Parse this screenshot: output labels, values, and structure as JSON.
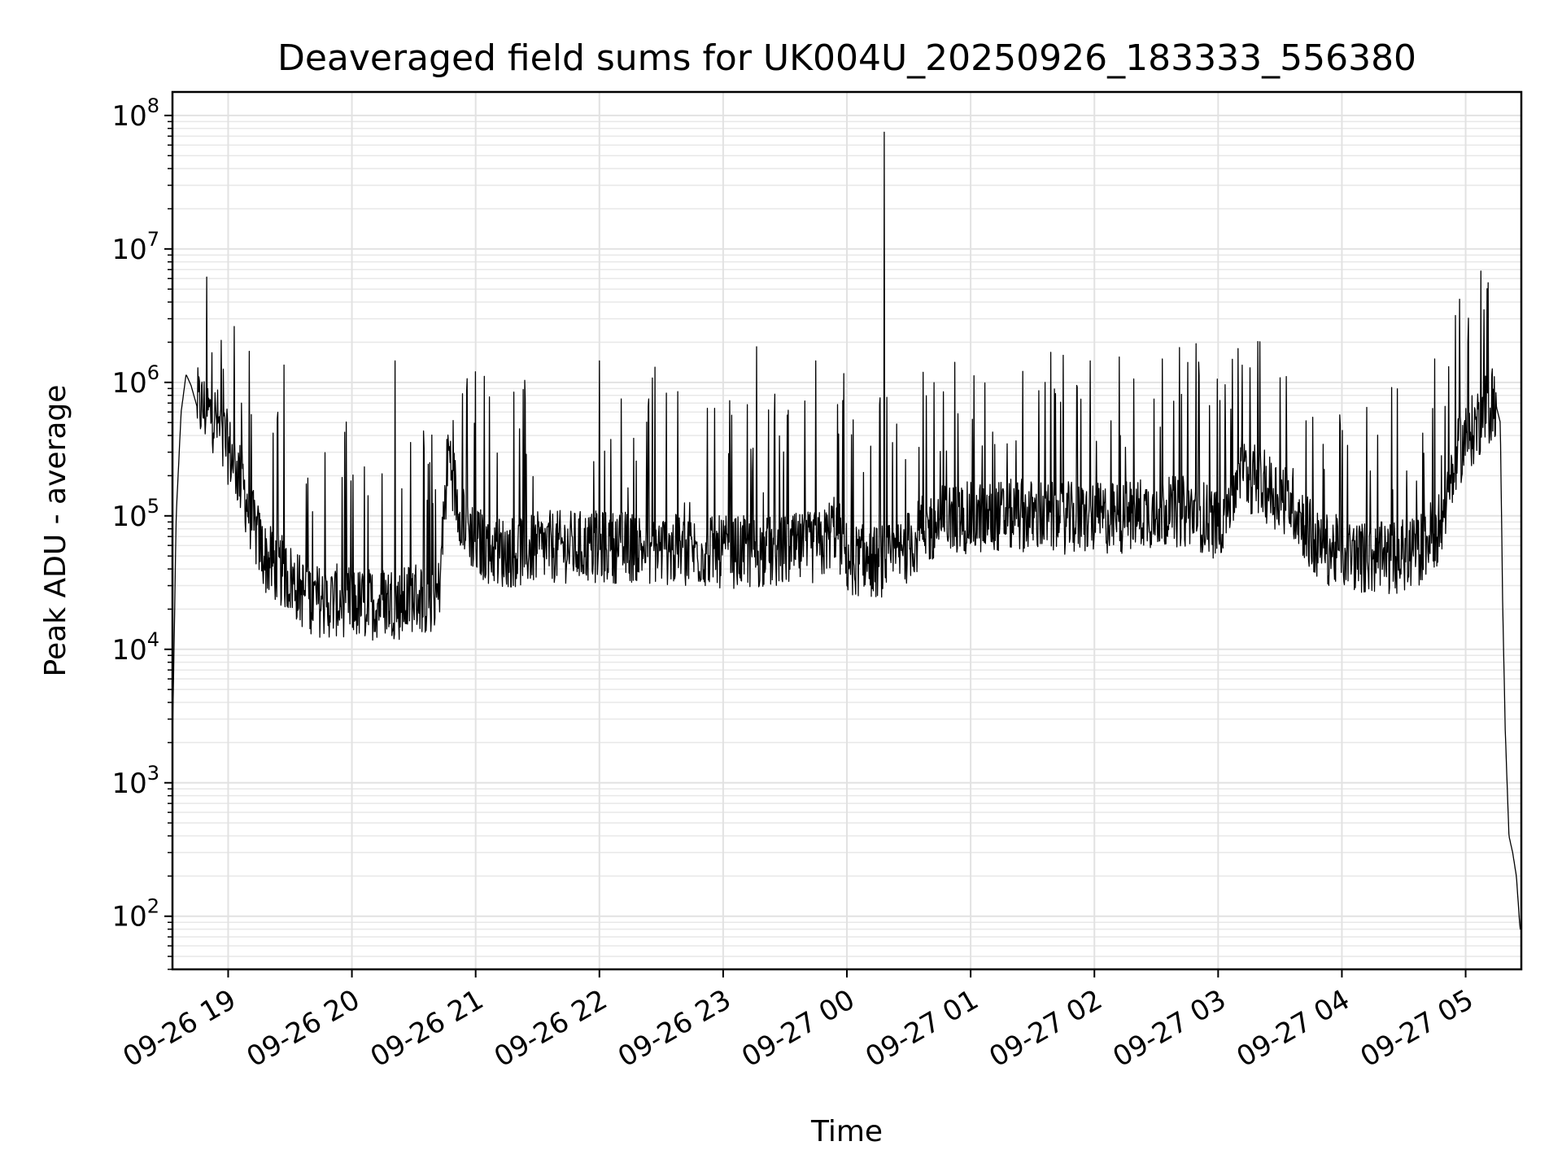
{
  "chart_data": {
    "type": "line",
    "title": "Deaveraged field sums for UK004U_20250926_183333_556380",
    "xlabel": "Time",
    "ylabel": "Peak ADU - average",
    "yscale": "log",
    "ylim": [
      40,
      150000000
    ],
    "xlim_hours": [
      -0.45,
      10.45
    ],
    "grid": true,
    "line_color": "#000000",
    "x_ticks": [
      {
        "hour": 0,
        "label": "09-26 19"
      },
      {
        "hour": 1,
        "label": "09-26 20"
      },
      {
        "hour": 2,
        "label": "09-26 21"
      },
      {
        "hour": 3,
        "label": "09-26 22"
      },
      {
        "hour": 4,
        "label": "09-26 23"
      },
      {
        "hour": 5,
        "label": "09-27 00"
      },
      {
        "hour": 6,
        "label": "09-27 01"
      },
      {
        "hour": 7,
        "label": "09-27 02"
      },
      {
        "hour": 8,
        "label": "09-27 03"
      },
      {
        "hour": 9,
        "label": "09-27 04"
      },
      {
        "hour": 10,
        "label": "09-27 05"
      }
    ],
    "y_ticks": [
      {
        "value": 100,
        "base": "10",
        "exp": "2"
      },
      {
        "value": 1000,
        "base": "10",
        "exp": "3"
      },
      {
        "value": 10000,
        "base": "10",
        "exp": "4"
      },
      {
        "value": 100000,
        "base": "10",
        "exp": "5"
      },
      {
        "value": 1000000,
        "base": "10",
        "exp": "6"
      },
      {
        "value": 10000000,
        "base": "10",
        "exp": "7"
      },
      {
        "value": 100000000,
        "base": "10",
        "exp": "8"
      }
    ],
    "baseline_hours": [
      -0.45,
      -0.42,
      -0.38,
      -0.34,
      -0.3,
      -0.25,
      -0.2,
      -0.1,
      0.0,
      0.1,
      0.2,
      0.3,
      0.4,
      0.5,
      0.6,
      0.7,
      0.8,
      0.9,
      1.0,
      1.1,
      1.2,
      1.3,
      1.4,
      1.5,
      1.6,
      1.7,
      1.74,
      1.78,
      1.85,
      2.0,
      2.2,
      2.4,
      2.6,
      2.8,
      3.0,
      3.3,
      3.6,
      4.0,
      4.4,
      4.8,
      4.9,
      5.0,
      5.2,
      5.4,
      5.6,
      5.8,
      6.0,
      6.4,
      6.8,
      7.0,
      7.2,
      7.4,
      7.6,
      7.8,
      7.9,
      8.0,
      8.2,
      8.4,
      8.6,
      8.8,
      9.0,
      9.2,
      9.4,
      9.5,
      9.6,
      9.8,
      9.95,
      10.05,
      10.15,
      10.2,
      10.22,
      10.25,
      10.28,
      10.3,
      10.32,
      10.35,
      10.38,
      10.41,
      10.44
    ],
    "baseline_values": [
      2000,
      100000,
      600000,
      1150000,
      950000,
      650000,
      600000,
      500000,
      300000,
      180000,
      80000,
      45000,
      38000,
      32000,
      25000,
      22000,
      21000,
      22000,
      21000,
      20000,
      21000,
      22000,
      20000,
      24000,
      22000,
      24000,
      80000,
      300000,
      120000,
      60000,
      50000,
      52000,
      55000,
      55000,
      55000,
      55000,
      52000,
      50000,
      50000,
      55000,
      80000,
      45000,
      42000,
      45000,
      70000,
      90000,
      90000,
      95000,
      90000,
      90000,
      90000,
      100000,
      100000,
      100000,
      90000,
      80000,
      200000,
      150000,
      120000,
      55000,
      50000,
      45000,
      45000,
      48000,
      50000,
      80000,
      300000,
      400000,
      550000,
      600000,
      700000,
      650000,
      500000,
      20000,
      2500,
      400,
      300,
      200,
      80
    ],
    "spikes": [
      {
        "hour": 5.3,
        "value": 75000000
      },
      {
        "hour": 9.95,
        "value": 4200000
      },
      {
        "hour": 10.15,
        "value": 3500000
      },
      {
        "hour": 10.02,
        "value": 2000000
      },
      {
        "hour": 7.82,
        "value": 1950000
      },
      {
        "hour": 4.27,
        "value": 1850000
      },
      {
        "hour": 0.45,
        "value": 1350000
      },
      {
        "hour": 1.35,
        "value": 1450000
      },
      {
        "hour": 2.0,
        "value": 1200000
      },
      {
        "hour": 3.0,
        "value": 1450000
      },
      {
        "hour": 3.45,
        "value": 1300000
      },
      {
        "hour": 4.75,
        "value": 1450000
      },
      {
        "hour": 7.2,
        "value": 1550000
      },
      {
        "hour": 7.55,
        "value": 1500000
      },
      {
        "hour": 9.75,
        "value": 1500000
      }
    ]
  }
}
